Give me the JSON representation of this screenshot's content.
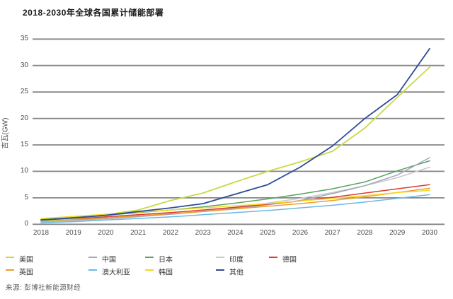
{
  "page": {
    "title": "2018-2030年全球各国累计储能部署",
    "source": "来源: 彭博社新能源财经"
  },
  "chart_data": {
    "type": "line",
    "title": "2018-2030年全球各国累计储能部署",
    "xlabel": "",
    "ylabel": "吉瓦(GW)",
    "categories": [
      "2018",
      "2019",
      "2020",
      "2021",
      "2022",
      "2023",
      "2024",
      "2025",
      "2026",
      "2027",
      "2028",
      "2029",
      "2030"
    ],
    "ylim": [
      0,
      35
    ],
    "yticks": [
      0,
      5,
      10,
      15,
      20,
      25,
      30,
      35
    ],
    "grid": true,
    "legend_position": "bottom",
    "series": [
      {
        "name": "印度",
        "color": "#c9c9cd",
        "values": [
          0.3,
          0.6,
          1.0,
          1.4,
          1.9,
          2.5,
          3.2,
          4.0,
          4.9,
          6.0,
          7.3,
          8.8,
          10.8
        ]
      },
      {
        "name": "日本",
        "color": "#58a35f",
        "values": [
          0.9,
          1.3,
          1.7,
          2.2,
          2.7,
          3.3,
          4.0,
          4.8,
          5.7,
          6.7,
          8.0,
          10.1,
          12.0
        ]
      },
      {
        "name": "中国",
        "color": "#a3a6be",
        "values": [
          0.5,
          0.8,
          1.1,
          1.5,
          1.9,
          2.4,
          3.0,
          3.7,
          4.5,
          5.8,
          7.3,
          9.3,
          12.6
        ]
      },
      {
        "name": "德国",
        "color": "#da3b34",
        "values": [
          0.7,
          1.0,
          1.4,
          1.8,
          2.2,
          2.7,
          3.2,
          3.8,
          4.4,
          5.1,
          5.9,
          6.7,
          7.5
        ]
      },
      {
        "name": "英国",
        "color": "#f09b2f",
        "values": [
          0.6,
          0.9,
          1.2,
          1.6,
          2.0,
          2.4,
          2.9,
          3.4,
          3.9,
          4.5,
          5.2,
          6.0,
          6.8
        ]
      },
      {
        "name": "澳大利亚",
        "color": "#6cb9e3",
        "values": [
          0.3,
          0.5,
          0.8,
          1.1,
          1.4,
          1.8,
          2.2,
          2.6,
          3.1,
          3.6,
          4.2,
          4.9,
          5.6
        ]
      },
      {
        "name": "韩国",
        "color": "#f4d822",
        "values": [
          1.1,
          1.5,
          1.9,
          2.3,
          2.7,
          3.1,
          3.5,
          3.9,
          4.4,
          4.9,
          5.4,
          6.0,
          6.4
        ]
      },
      {
        "name": "美国",
        "color": "#c9d944",
        "values": [
          0.6,
          1.1,
          1.8,
          2.7,
          4.5,
          5.9,
          8.0,
          10.0,
          11.8,
          13.8,
          18.2,
          24.0,
          29.7
        ]
      },
      {
        "name": "其他",
        "color": "#2e4d96",
        "values": [
          0.8,
          1.2,
          1.7,
          2.4,
          3.1,
          3.9,
          5.7,
          7.5,
          10.8,
          14.8,
          20.0,
          24.5,
          33.2
        ]
      }
    ],
    "legend_rows": [
      [
        "美国",
        "中国",
        "日本",
        "印度",
        "德国"
      ],
      [
        "英国",
        "澳大利亚",
        "韩国",
        "其他"
      ]
    ]
  }
}
